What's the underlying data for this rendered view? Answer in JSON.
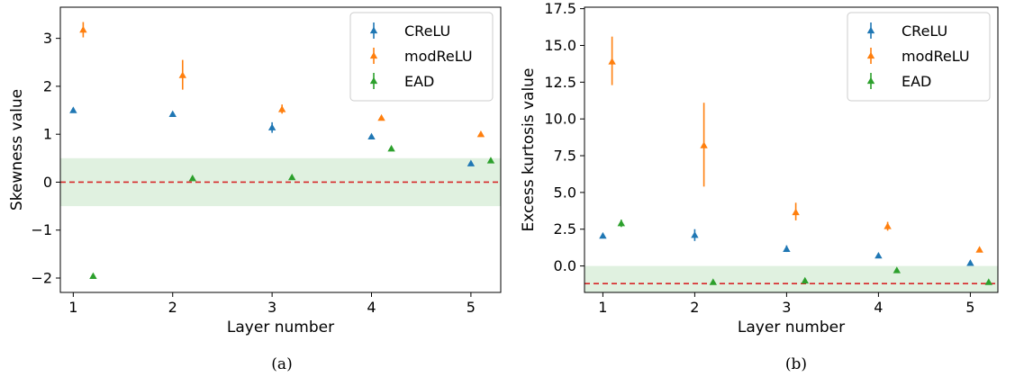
{
  "chart_data": [
    {
      "type": "scatter",
      "xlabel": "Layer number",
      "ylabel": "Skewness value",
      "caption": "(a)",
      "xlim": [
        0.87,
        5.3
      ],
      "ylim": [
        -2.3,
        3.65
      ],
      "xticks": [
        1,
        2,
        3,
        4,
        5
      ],
      "yticks": [
        -2,
        -1,
        0,
        1,
        2,
        3
      ],
      "ytick_labels": [
        "−2",
        "−1",
        "0",
        "1",
        "2",
        "3"
      ],
      "reference_line": {
        "y": 0,
        "color": "#d62728",
        "style": "dashed"
      },
      "band": {
        "y0": -0.5,
        "y1": 0.5,
        "color": "#2ca02c"
      },
      "legend": {
        "placement": "top-right",
        "entries": [
          "CReLU",
          "modReLU",
          "EAD"
        ]
      },
      "series": [
        {
          "name": "CReLU",
          "color": "#1f77b4",
          "points": [
            {
              "x": 1.0,
              "y": 1.5,
              "lo": 1.45,
              "hi": 1.55
            },
            {
              "x": 2.0,
              "y": 1.42,
              "lo": 1.37,
              "hi": 1.47
            },
            {
              "x": 3.0,
              "y": 1.14,
              "lo": 1.03,
              "hi": 1.25
            },
            {
              "x": 4.0,
              "y": 0.95,
              "lo": 0.92,
              "hi": 0.98
            },
            {
              "x": 5.0,
              "y": 0.39,
              "lo": 0.37,
              "hi": 0.41
            }
          ]
        },
        {
          "name": "modReLU",
          "color": "#ff7f0e",
          "points": [
            {
              "x": 1.1,
              "y": 3.18,
              "lo": 3.02,
              "hi": 3.34
            },
            {
              "x": 2.1,
              "y": 2.23,
              "lo": 1.93,
              "hi": 2.55
            },
            {
              "x": 3.1,
              "y": 1.52,
              "lo": 1.43,
              "hi": 1.62
            },
            {
              "x": 4.1,
              "y": 1.34,
              "lo": 1.31,
              "hi": 1.37
            },
            {
              "x": 5.1,
              "y": 1.0,
              "lo": 0.98,
              "hi": 1.02
            }
          ]
        },
        {
          "name": "EAD",
          "color": "#2ca02c",
          "points": [
            {
              "x": 1.2,
              "y": -1.96,
              "lo": -1.98,
              "hi": -1.94
            },
            {
              "x": 2.2,
              "y": 0.08,
              "lo": 0.04,
              "hi": 0.12
            },
            {
              "x": 3.2,
              "y": 0.1,
              "lo": 0.07,
              "hi": 0.13
            },
            {
              "x": 4.2,
              "y": 0.7,
              "lo": 0.68,
              "hi": 0.72
            },
            {
              "x": 5.2,
              "y": 0.45,
              "lo": 0.42,
              "hi": 0.48
            }
          ]
        }
      ]
    },
    {
      "type": "scatter",
      "xlabel": "Layer number",
      "ylabel": "Excess kurtosis value",
      "caption": "(b)",
      "xlim": [
        0.8,
        5.3
      ],
      "ylim": [
        -1.8,
        17.6
      ],
      "xticks": [
        1,
        2,
        3,
        4,
        5
      ],
      "yticks": [
        0.0,
        2.5,
        5.0,
        7.5,
        10.0,
        12.5,
        15.0,
        17.5
      ],
      "ytick_labels": [
        "0.0",
        "2.5",
        "5.0",
        "7.5",
        "10.0",
        "12.5",
        "15.0",
        "17.5"
      ],
      "reference_line": {
        "y": -1.2,
        "color": "#d62728",
        "style": "dashed"
      },
      "band": {
        "y0": -1.8,
        "y1": 0.0,
        "color": "#2ca02c"
      },
      "legend": {
        "placement": "top-right",
        "entries": [
          "CReLU",
          "modReLU",
          "EAD"
        ]
      },
      "series": [
        {
          "name": "CReLU",
          "color": "#1f77b4",
          "points": [
            {
              "x": 1.0,
              "y": 2.05,
              "lo": 1.9,
              "hi": 2.2
            },
            {
              "x": 2.0,
              "y": 2.1,
              "lo": 1.7,
              "hi": 2.5
            },
            {
              "x": 3.0,
              "y": 1.15,
              "lo": 0.95,
              "hi": 1.4
            },
            {
              "x": 4.0,
              "y": 0.7,
              "lo": 0.6,
              "hi": 0.8
            },
            {
              "x": 5.0,
              "y": 0.2,
              "lo": 0.1,
              "hi": 0.3
            }
          ]
        },
        {
          "name": "modReLU",
          "color": "#ff7f0e",
          "points": [
            {
              "x": 1.1,
              "y": 13.9,
              "lo": 12.3,
              "hi": 15.6
            },
            {
              "x": 2.1,
              "y": 8.2,
              "lo": 5.4,
              "hi": 11.1
            },
            {
              "x": 3.1,
              "y": 3.65,
              "lo": 3.1,
              "hi": 4.3
            },
            {
              "x": 4.1,
              "y": 2.7,
              "lo": 2.4,
              "hi": 3.0
            },
            {
              "x": 5.1,
              "y": 1.1,
              "lo": 1.0,
              "hi": 1.2
            }
          ]
        },
        {
          "name": "EAD",
          "color": "#2ca02c",
          "points": [
            {
              "x": 1.2,
              "y": 2.9,
              "lo": 2.65,
              "hi": 3.15
            },
            {
              "x": 2.2,
              "y": -1.1,
              "lo": -1.15,
              "hi": -1.05
            },
            {
              "x": 3.2,
              "y": -1.0,
              "lo": -1.05,
              "hi": -0.95
            },
            {
              "x": 4.2,
              "y": -0.3,
              "lo": -0.35,
              "hi": -0.25
            },
            {
              "x": 5.2,
              "y": -1.1,
              "lo": -1.15,
              "hi": -1.05
            }
          ]
        }
      ]
    }
  ]
}
